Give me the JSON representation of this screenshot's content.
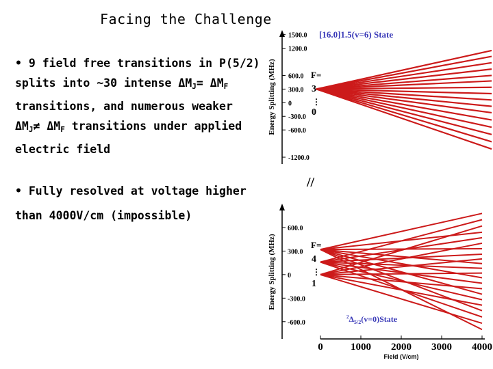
{
  "slide": {
    "title": "Facing the Challenge",
    "bullet1": {
      "line1": "• 9 field free transitions in P(5/2)",
      "line2_a": "splits into ~30 intense ",
      "line2_b": "ΔM",
      "line2_sub1": "J",
      "line2_c": "= ΔM",
      "line2_sub2": "F",
      "line3": "transitions, and numerous weaker",
      "line4_a": "ΔM",
      "line4_sub1": "J",
      "line4_b": "≠ ΔM",
      "line4_sub2": "F",
      "line4_c": " transitions under applied",
      "line5": "electric field"
    },
    "bullet2": {
      "line1": "• Fully resolved at voltage higher",
      "line2": "than 4000V/cm (impossible)"
    },
    "break_mark": "//"
  },
  "chart_data": [
    {
      "type": "line",
      "title": "[16.0]1.5(v=6) State",
      "ylabel": "Energy Splitting (MHz)",
      "y_ticks": [
        "1500.0",
        "1200.0",
        "600.0",
        "300.0",
        "0",
        "-300.0",
        "-600.0",
        "-1200.0"
      ],
      "ylim": [
        -1350,
        1600
      ],
      "xlim": [
        0,
        4000
      ],
      "f_label": "F=",
      "f_values": [
        "3",
        "0"
      ],
      "f_dots": "⋮",
      "color": "#cc1a1a",
      "origin_y": 300,
      "series_end_values": [
        1150,
        1020,
        880,
        740,
        600,
        480,
        340,
        200,
        60,
        -80,
        -220,
        -380,
        -540,
        -700,
        -860,
        -1020
      ]
    },
    {
      "type": "line",
      "title": "²Δ5/2(v=0)State",
      "title_sup": "2",
      "title_main": "Δ",
      "title_sub": "5/2",
      "title_tail": "(v=0)State",
      "xlabel": "Field (V/cm)",
      "ylabel": "Energy Splitting (MHz)",
      "x_ticks": [
        "0",
        "1000",
        "2000",
        "3000",
        "4000"
      ],
      "y_ticks": [
        "600.0",
        "300.0",
        "0",
        "-300.0",
        "-600.0"
      ],
      "ylim": [
        -750,
        800
      ],
      "xlim": [
        0,
        4000
      ],
      "f_label": "F=",
      "f_values": [
        "4",
        "1"
      ],
      "f_dots": "⋮",
      "color": "#cc1a1a",
      "origin_ys": [
        320,
        160,
        0
      ],
      "series_end_values": [
        780,
        700,
        620,
        540,
        470,
        400,
        330,
        260,
        200,
        140,
        80,
        20,
        -40,
        -110,
        -180,
        -250,
        -320,
        -390,
        -460,
        -540,
        -620,
        -700
      ]
    }
  ]
}
